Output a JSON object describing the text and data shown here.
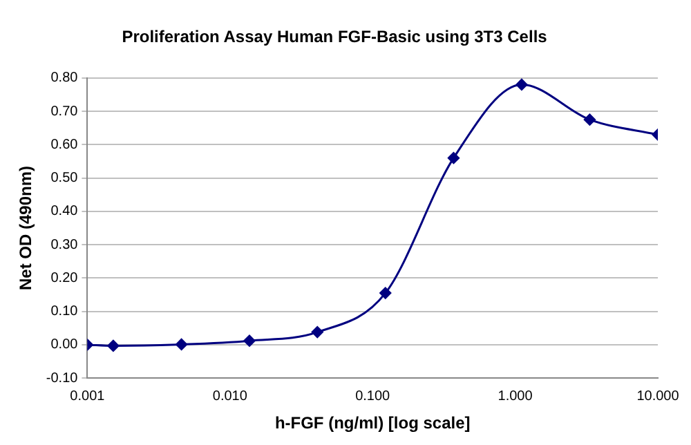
{
  "chart_data": {
    "type": "line",
    "title": "Proliferation Assay Human FGF-Basic using 3T3 Cells",
    "xlabel": "h-FGF (ng/ml) [log scale]",
    "ylabel": "Net OD (490nm)",
    "x": [
      0.001,
      0.00152,
      0.00457,
      0.0137,
      0.041,
      0.123,
      0.37,
      1.11,
      3.33,
      10
    ],
    "series": [
      {
        "color": "#000080",
        "values": [
          0,
          -0.003,
          0.001,
          0.012,
          0.038,
          0.155,
          0.56,
          0.78,
          0.675,
          0.63
        ]
      }
    ],
    "log": "x",
    "xlim": [
      0.001,
      10
    ],
    "xticks": [
      {
        "value": 0.001,
        "label": "0.001"
      },
      {
        "value": 0.01,
        "label": "0.010"
      },
      {
        "value": 0.1,
        "label": "0.100"
      },
      {
        "value": 1,
        "label": "1.000"
      },
      {
        "value": 10,
        "label": "10.000"
      }
    ],
    "ylim": [
      -0.1,
      0.8
    ],
    "yticks": [
      {
        "value": -0.1,
        "label": "-0.10"
      },
      {
        "value": 0,
        "label": "0.00"
      },
      {
        "value": 0.1,
        "label": "0.10"
      },
      {
        "value": 0.2,
        "label": "0.20"
      },
      {
        "value": 0.3,
        "label": "0.30"
      },
      {
        "value": 0.4,
        "label": "0.40"
      },
      {
        "value": 0.5,
        "label": "0.50"
      },
      {
        "value": 0.6,
        "label": "0.60"
      },
      {
        "value": 0.7,
        "label": "0.70"
      },
      {
        "value": 0.8,
        "label": "0.80"
      }
    ],
    "grid": "y",
    "legend": false,
    "marker": "diamond",
    "line_style": "solid"
  }
}
